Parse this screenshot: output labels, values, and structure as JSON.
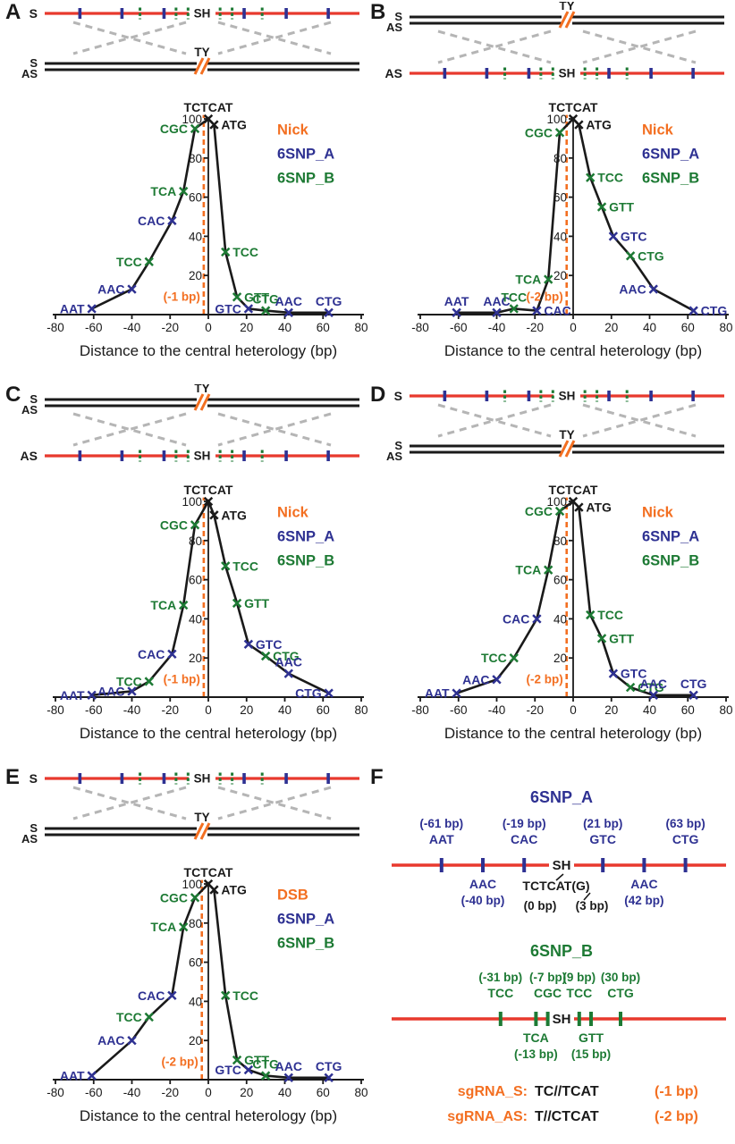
{
  "colors": {
    "blue": "#2e3192",
    "green": "#1d7a34",
    "orange": "#f36f21",
    "red": "#e8392d",
    "black": "#1a1a1a",
    "gray": "#b5b5b5"
  },
  "axis": {
    "xlabel": "Distance to the central heterology (bp)",
    "xticks": [
      -80,
      -60,
      -40,
      -20,
      0,
      20,
      40,
      60,
      80
    ],
    "yticks": [
      20,
      40,
      60,
      80,
      100
    ],
    "xlim": [
      -80,
      80
    ],
    "ylim": [
      0,
      100
    ]
  },
  "diagram_labels": {
    "s": "S",
    "as": "AS",
    "sh": "SH",
    "ty": "TY"
  },
  "snp_ticks": {
    "blue": [
      -61,
      -40,
      -19,
      21,
      42,
      63
    ],
    "green": [
      -31,
      -13,
      -7,
      9,
      15,
      30
    ]
  },
  "chart_data": [
    {
      "panel": "A",
      "type": "line",
      "diagram": "red-top",
      "red_strand_label": "S",
      "legend": [
        "Nick",
        "6SNP_A",
        "6SNP_B"
      ],
      "cut_x": -1,
      "cut_label": "(-1 bp)",
      "points": [
        {
          "label": "AAT",
          "x": -61,
          "y": 3,
          "c": "blue",
          "side": "left"
        },
        {
          "label": "AAC",
          "x": -40,
          "y": 13,
          "c": "blue",
          "side": "left"
        },
        {
          "label": "TCC",
          "x": -31,
          "y": 27,
          "c": "green",
          "side": "left"
        },
        {
          "label": "CAC",
          "x": -19,
          "y": 48,
          "c": "blue",
          "side": "left"
        },
        {
          "label": "TCA",
          "x": -13,
          "y": 63,
          "c": "green",
          "side": "left"
        },
        {
          "label": "CGC",
          "x": -7,
          "y": 95,
          "c": "green",
          "side": "left"
        },
        {
          "label": "TCTCAT",
          "x": 0,
          "y": 100,
          "c": "black",
          "side": "top"
        },
        {
          "label": "ATG",
          "x": 3,
          "y": 97,
          "c": "black",
          "side": "right"
        },
        {
          "label": "TCC",
          "x": 9,
          "y": 32,
          "c": "green",
          "side": "right"
        },
        {
          "label": "GTT",
          "x": 15,
          "y": 9,
          "c": "green",
          "side": "right"
        },
        {
          "label": "GTC",
          "x": 21,
          "y": 3,
          "c": "blue",
          "side": "left"
        },
        {
          "label": "CTG",
          "x": 30,
          "y": 2,
          "c": "green",
          "side": "top"
        },
        {
          "label": "AAC",
          "x": 42,
          "y": 1,
          "c": "blue",
          "side": "top"
        },
        {
          "label": "CTG",
          "x": 63,
          "y": 1,
          "c": "blue",
          "side": "top"
        }
      ]
    },
    {
      "panel": "B",
      "type": "line",
      "diagram": "black-top",
      "red_strand_label": "AS",
      "legend": [
        "Nick",
        "6SNP_A",
        "6SNP_B"
      ],
      "cut_x": -2,
      "cut_label": "(-2 bp)",
      "points": [
        {
          "label": "AAT",
          "x": -61,
          "y": 1,
          "c": "blue",
          "side": "top"
        },
        {
          "label": "AAC",
          "x": -40,
          "y": 1,
          "c": "blue",
          "side": "top"
        },
        {
          "label": "TCC",
          "x": -31,
          "y": 3,
          "c": "green",
          "side": "top"
        },
        {
          "label": "CAC",
          "x": -19,
          "y": 2,
          "c": "blue",
          "side": "right"
        },
        {
          "label": "TCA",
          "x": -13,
          "y": 18,
          "c": "green",
          "side": "left"
        },
        {
          "label": "CGC",
          "x": -7,
          "y": 93,
          "c": "green",
          "side": "left"
        },
        {
          "label": "TCTCAT",
          "x": 0,
          "y": 100,
          "c": "black",
          "side": "top"
        },
        {
          "label": "ATG",
          "x": 3,
          "y": 97,
          "c": "black",
          "side": "right"
        },
        {
          "label": "TCC",
          "x": 9,
          "y": 70,
          "c": "green",
          "side": "right"
        },
        {
          "label": "GTT",
          "x": 15,
          "y": 55,
          "c": "green",
          "side": "right"
        },
        {
          "label": "GTC",
          "x": 21,
          "y": 40,
          "c": "blue",
          "side": "right"
        },
        {
          "label": "CTG",
          "x": 30,
          "y": 30,
          "c": "green",
          "side": "right"
        },
        {
          "label": "AAC",
          "x": 42,
          "y": 13,
          "c": "blue",
          "side": "left"
        },
        {
          "label": "CTG",
          "x": 63,
          "y": 2,
          "c": "blue",
          "side": "right"
        }
      ]
    },
    {
      "panel": "C",
      "type": "line",
      "diagram": "black-top",
      "red_strand_label": "AS",
      "legend": [
        "Nick",
        "6SNP_A",
        "6SNP_B"
      ],
      "cut_x": -1,
      "cut_label": "(-1 bp)",
      "points": [
        {
          "label": "AAT",
          "x": -61,
          "y": 1,
          "c": "blue",
          "side": "left"
        },
        {
          "label": "AAC",
          "x": -40,
          "y": 3,
          "c": "blue",
          "side": "left"
        },
        {
          "label": "TCC",
          "x": -31,
          "y": 8,
          "c": "green",
          "side": "left"
        },
        {
          "label": "CAC",
          "x": -19,
          "y": 22,
          "c": "blue",
          "side": "left"
        },
        {
          "label": "TCA",
          "x": -13,
          "y": 47,
          "c": "green",
          "side": "left"
        },
        {
          "label": "CGC",
          "x": -7,
          "y": 88,
          "c": "green",
          "side": "left"
        },
        {
          "label": "TCTCAT",
          "x": 0,
          "y": 100,
          "c": "black",
          "side": "top"
        },
        {
          "label": "ATG",
          "x": 3,
          "y": 93,
          "c": "black",
          "side": "right"
        },
        {
          "label": "TCC",
          "x": 9,
          "y": 67,
          "c": "green",
          "side": "right"
        },
        {
          "label": "GTT",
          "x": 15,
          "y": 48,
          "c": "green",
          "side": "right"
        },
        {
          "label": "GTC",
          "x": 21,
          "y": 27,
          "c": "blue",
          "side": "right"
        },
        {
          "label": "CTG",
          "x": 30,
          "y": 21,
          "c": "green",
          "side": "right"
        },
        {
          "label": "AAC",
          "x": 42,
          "y": 12,
          "c": "blue",
          "side": "top"
        },
        {
          "label": "CTG",
          "x": 63,
          "y": 2,
          "c": "blue",
          "side": "left"
        }
      ]
    },
    {
      "panel": "D",
      "type": "line",
      "diagram": "red-top",
      "red_strand_label": "S",
      "legend": [
        "Nick",
        "6SNP_A",
        "6SNP_B"
      ],
      "cut_x": -2,
      "cut_label": "(-2 bp)",
      "points": [
        {
          "label": "AAT",
          "x": -61,
          "y": 2,
          "c": "blue",
          "side": "left"
        },
        {
          "label": "AAC",
          "x": -40,
          "y": 9,
          "c": "blue",
          "side": "left"
        },
        {
          "label": "TCC",
          "x": -31,
          "y": 20,
          "c": "green",
          "side": "left"
        },
        {
          "label": "CAC",
          "x": -19,
          "y": 40,
          "c": "blue",
          "side": "left"
        },
        {
          "label": "TCA",
          "x": -13,
          "y": 65,
          "c": "green",
          "side": "left"
        },
        {
          "label": "CGC",
          "x": -7,
          "y": 95,
          "c": "green",
          "side": "left"
        },
        {
          "label": "TCTCAT",
          "x": 0,
          "y": 100,
          "c": "black",
          "side": "top"
        },
        {
          "label": "ATG",
          "x": 3,
          "y": 97,
          "c": "black",
          "side": "right"
        },
        {
          "label": "TCC",
          "x": 9,
          "y": 42,
          "c": "green",
          "side": "right"
        },
        {
          "label": "GTT",
          "x": 15,
          "y": 30,
          "c": "green",
          "side": "right"
        },
        {
          "label": "GTC",
          "x": 21,
          "y": 12,
          "c": "blue",
          "side": "right"
        },
        {
          "label": "CTG",
          "x": 30,
          "y": 5,
          "c": "green",
          "side": "right"
        },
        {
          "label": "AAC",
          "x": 42,
          "y": 1,
          "c": "blue",
          "side": "top"
        },
        {
          "label": "CTG",
          "x": 63,
          "y": 1,
          "c": "blue",
          "side": "top"
        }
      ]
    },
    {
      "panel": "E",
      "type": "line",
      "diagram": "red-top",
      "red_strand_label": "S",
      "legend": [
        "DSB",
        "6SNP_A",
        "6SNP_B"
      ],
      "cut_x": -2,
      "cut_label": "(-2 bp)",
      "points": [
        {
          "label": "AAT",
          "x": -61,
          "y": 2,
          "c": "blue",
          "side": "left"
        },
        {
          "label": "AAC",
          "x": -40,
          "y": 20,
          "c": "blue",
          "side": "left"
        },
        {
          "label": "TCC",
          "x": -31,
          "y": 32,
          "c": "green",
          "side": "left"
        },
        {
          "label": "CAC",
          "x": -19,
          "y": 43,
          "c": "blue",
          "side": "left"
        },
        {
          "label": "TCA",
          "x": -13,
          "y": 78,
          "c": "green",
          "side": "left"
        },
        {
          "label": "CGC",
          "x": -7,
          "y": 93,
          "c": "green",
          "side": "left"
        },
        {
          "label": "TCTCAT",
          "x": 0,
          "y": 100,
          "c": "black",
          "side": "top"
        },
        {
          "label": "ATG",
          "x": 3,
          "y": 97,
          "c": "black",
          "side": "right"
        },
        {
          "label": "TCC",
          "x": 9,
          "y": 43,
          "c": "green",
          "side": "right"
        },
        {
          "label": "GTT",
          "x": 15,
          "y": 10,
          "c": "green",
          "side": "right"
        },
        {
          "label": "GTC",
          "x": 21,
          "y": 5,
          "c": "blue",
          "side": "left"
        },
        {
          "label": "CTG",
          "x": 30,
          "y": 2,
          "c": "green",
          "side": "top"
        },
        {
          "label": "AAC",
          "x": 42,
          "y": 1,
          "c": "blue",
          "side": "top"
        },
        {
          "label": "CTG",
          "x": 63,
          "y": 1,
          "c": "blue",
          "side": "top"
        }
      ]
    }
  ],
  "panelF": {
    "letter": "F",
    "mapA": {
      "title": "6SNP_A",
      "sh": "SH",
      "above": [
        {
          "x": -61,
          "bp": "(-61 bp)",
          "codon": "AAT"
        },
        {
          "x": -19,
          "bp": "(-19 bp)",
          "codon": "CAC"
        },
        {
          "x": 21,
          "bp": "(21 bp)",
          "codon": "GTC"
        },
        {
          "x": 63,
          "bp": "(63 bp)",
          "codon": "CTG"
        }
      ],
      "below": [
        {
          "x": -40,
          "codon": "AAC",
          "bp": "(-40 bp)"
        },
        {
          "x": 42,
          "codon": "AAC",
          "bp": "(42 bp)"
        }
      ],
      "center_seq": "TCTCAT(G)",
      "center_bp": [
        "(0 bp)",
        "(3 bp)"
      ]
    },
    "mapB": {
      "title": "6SNP_B",
      "sh": "SH",
      "above": [
        {
          "x": -31,
          "bp": "(-31 bp)",
          "codon": "TCC"
        },
        {
          "x": -7,
          "bp": "(-7 bp)",
          "codon": "CGC"
        },
        {
          "x": 9,
          "bp": "(9 bp)",
          "codon": "TCC"
        },
        {
          "x": 30,
          "bp": "(30 bp)",
          "codon": "CTG"
        }
      ],
      "below": [
        {
          "x": -13,
          "codon": "TCA",
          "bp": "(-13 bp)"
        },
        {
          "x": 15,
          "codon": "GTT",
          "bp": "(15 bp)"
        }
      ]
    },
    "sgrna": [
      {
        "name": "sgRNA_S:",
        "seq": "TC//TCAT",
        "bp": "(-1 bp)"
      },
      {
        "name": "sgRNA_AS:",
        "seq": "T//CTCAT",
        "bp": "(-2 bp)"
      }
    ]
  }
}
